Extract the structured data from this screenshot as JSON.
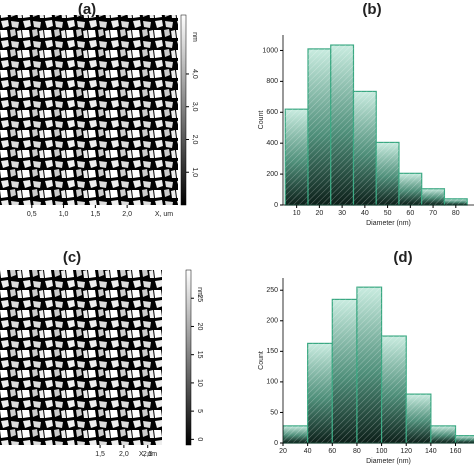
{
  "chart_data": [
    {
      "type": "image",
      "label": "(a)",
      "xlabel": "X, um",
      "xlim": [
        0,
        2.8
      ],
      "xticks": [
        {
          "value": 0.5,
          "label": "0,5"
        },
        {
          "value": 1.0,
          "label": "1,0"
        },
        {
          "value": 1.5,
          "label": "1,5"
        },
        {
          "value": 2.0,
          "label": "2,0"
        }
      ],
      "colorbar_unit": "nm",
      "colorbar_lim": [
        0,
        5.8
      ],
      "colorbar_ticks": [
        {
          "value": 1,
          "label": "1,0"
        },
        {
          "value": 2,
          "label": "2,0"
        },
        {
          "value": 3,
          "label": "3,0"
        },
        {
          "value": 4,
          "label": "4,0"
        }
      ]
    },
    {
      "type": "histogram",
      "label": "(b)",
      "xlabel": "Diameter (nm)",
      "ylabel": "Count",
      "color": "#3aa882",
      "bins": [
        5,
        15,
        25,
        35,
        45,
        55,
        65,
        75,
        85
      ],
      "values": [
        620,
        1010,
        1035,
        735,
        405,
        205,
        105,
        40
      ],
      "xlim": [
        4,
        88
      ],
      "ylim": [
        0,
        1100
      ],
      "xticks": [
        10,
        20,
        30,
        40,
        50,
        60,
        70,
        80
      ],
      "yticks": [
        0,
        200,
        400,
        600,
        800,
        1000
      ]
    },
    {
      "type": "image",
      "label": "(c)",
      "xlabel": "X, um",
      "xlim": [
        -0.6,
        2.8
      ],
      "xticks": [
        {
          "value": 1.5,
          "label": "1,5"
        },
        {
          "value": 2.0,
          "label": "2,0"
        },
        {
          "value": 2.5,
          "label": "2,5"
        }
      ],
      "colorbar_unit": "nm",
      "colorbar_lim": [
        -1,
        30
      ],
      "colorbar_ticks": [
        0,
        5,
        10,
        15,
        20,
        25
      ]
    },
    {
      "type": "histogram",
      "label": "(d)",
      "xlabel": "Diameter (nm)",
      "ylabel": "Count",
      "color": "#3aa882",
      "bins": [
        20,
        40,
        60,
        80,
        100,
        120,
        140,
        160,
        180
      ],
      "values": [
        28,
        163,
        235,
        255,
        175,
        80,
        28,
        12
      ],
      "xlim": [
        20,
        175
      ],
      "ylim": [
        0,
        270
      ],
      "xticks": [
        20,
        40,
        60,
        80,
        100,
        120,
        140,
        160
      ],
      "yticks": [
        0,
        50,
        100,
        150,
        200,
        250
      ]
    }
  ]
}
